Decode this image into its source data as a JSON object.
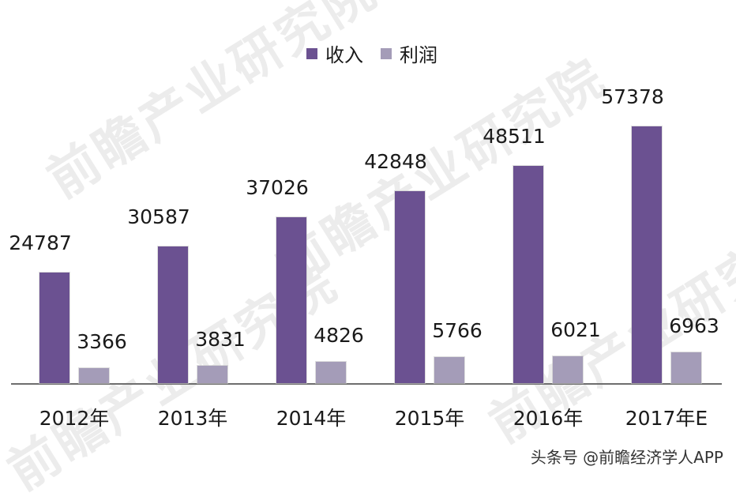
{
  "legend": {
    "items": [
      {
        "label": "收入",
        "color": "#6b5191"
      },
      {
        "label": "利润",
        "color": "#a49cb8"
      }
    ]
  },
  "watermark": {
    "text": "前瞻产业研究院"
  },
  "footer": {
    "text": "头条号 @前瞻经济学人APP"
  },
  "chart_data": {
    "type": "bar",
    "title": "",
    "xlabel": "",
    "ylabel": "",
    "categories": [
      "2012年",
      "2013年",
      "2014年",
      "2015年",
      "2016年",
      "2017年E"
    ],
    "series": [
      {
        "name": "收入",
        "values": [
          24787,
          30587,
          37026,
          42848,
          48511,
          57378
        ],
        "color": "#6b5191"
      },
      {
        "name": "利润",
        "values": [
          3366,
          3831,
          4826,
          5766,
          6021,
          6963
        ],
        "color": "#a49cb8"
      }
    ],
    "data_labels": true,
    "grid": false,
    "legend_position": "top",
    "ylim": [
      0,
      60000
    ]
  }
}
